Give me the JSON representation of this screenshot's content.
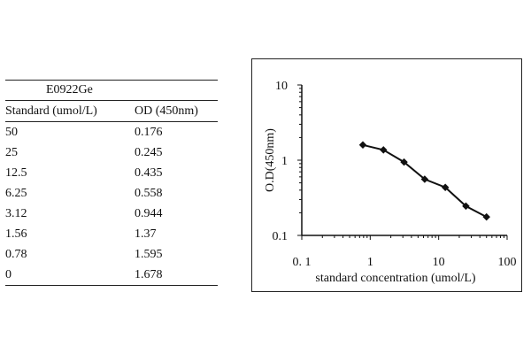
{
  "table": {
    "title": "E0922Ge",
    "headers": [
      "Standard (umol/L)",
      "OD (450nm)"
    ],
    "rows": [
      [
        "50",
        "0.176"
      ],
      [
        "25",
        "0.245"
      ],
      [
        "12.5",
        "0.435"
      ],
      [
        "6.25",
        "0.558"
      ],
      [
        "3.12",
        "0.944"
      ],
      [
        "1.56",
        "1.37"
      ],
      [
        "0.78",
        "1.595"
      ],
      [
        "0",
        "1.678"
      ]
    ]
  },
  "chart_data": {
    "type": "line",
    "title": "",
    "xlabel": "standard concentration (umol/L)",
    "ylabel": "O.D(450nm)",
    "x_scale": "log",
    "y_scale": "log",
    "xlim": [
      0.1,
      100
    ],
    "ylim": [
      0.1,
      10
    ],
    "x_tick_labels": [
      "0. 1",
      "1",
      "10",
      "100"
    ],
    "y_tick_labels": [
      "0.1",
      "1",
      "10"
    ],
    "grid": false,
    "series": [
      {
        "x": [
          0.78,
          1.56,
          3.12,
          6.25,
          12.5,
          25,
          50
        ],
        "y": [
          1.595,
          1.37,
          0.944,
          0.558,
          0.435,
          0.245,
          0.176
        ]
      }
    ]
  }
}
